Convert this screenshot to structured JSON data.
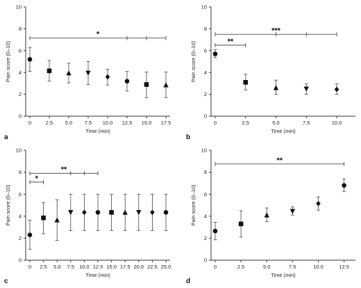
{
  "chart_data": [
    {
      "type": "scatter",
      "panel": "a",
      "xlabel": "Time (min)",
      "ylabel": "Pain score (0–10)",
      "ylim": [
        0,
        10
      ],
      "yticks": [
        "0",
        "2",
        "4",
        "6",
        "8",
        "10"
      ],
      "xticks": [
        "0",
        "2.5",
        "5.0",
        "7.5",
        "10.0",
        "12.5",
        "15.0",
        "17.5"
      ],
      "points": [
        {
          "x": 0,
          "y": 5.2,
          "lo": 4.1,
          "hi": 6.3,
          "marker": "circle"
        },
        {
          "x": 2.5,
          "y": 4.15,
          "lo": 3.2,
          "hi": 5.1,
          "marker": "square"
        },
        {
          "x": 5.0,
          "y": 3.95,
          "lo": 3.05,
          "hi": 4.85,
          "marker": "triangle-up"
        },
        {
          "x": 7.5,
          "y": 3.95,
          "lo": 2.9,
          "hi": 5.0,
          "marker": "triangle-down"
        },
        {
          "x": 10.0,
          "y": 3.6,
          "lo": 2.85,
          "hi": 4.3,
          "marker": "diamond"
        },
        {
          "x": 12.5,
          "y": 3.2,
          "lo": 2.3,
          "hi": 4.1,
          "marker": "circle"
        },
        {
          "x": 15.0,
          "y": 2.9,
          "lo": 1.7,
          "hi": 4.05,
          "marker": "square"
        },
        {
          "x": 17.5,
          "y": 2.85,
          "lo": 1.7,
          "hi": 4.05,
          "marker": "triangle-up"
        }
      ],
      "annotations": [
        {
          "label": "*",
          "y": 7.15,
          "x_start": 0,
          "x_end": 17.5,
          "ticks": [
            12.5,
            15.0,
            17.5
          ]
        }
      ]
    },
    {
      "type": "scatter",
      "panel": "b",
      "xlabel": "Time (min)",
      "ylabel": "Pain score (0–10)",
      "ylim": [
        0,
        10
      ],
      "yticks": [
        "0",
        "2",
        "4",
        "6",
        "8",
        "10"
      ],
      "xticks": [
        "0",
        "2.5",
        "5.0",
        "7.5",
        "10.0"
      ],
      "points": [
        {
          "x": 0,
          "y": 5.7,
          "lo": 5.35,
          "hi": 6.1,
          "marker": "circle"
        },
        {
          "x": 2.5,
          "y": 3.1,
          "lo": 2.4,
          "hi": 3.85,
          "marker": "square"
        },
        {
          "x": 5.0,
          "y": 2.6,
          "lo": 2.0,
          "hi": 3.3,
          "marker": "triangle-up"
        },
        {
          "x": 7.5,
          "y": 2.5,
          "lo": 2.0,
          "hi": 2.95,
          "marker": "triangle-down"
        },
        {
          "x": 10.0,
          "y": 2.45,
          "lo": 2.0,
          "hi": 2.95,
          "marker": "diamond"
        }
      ],
      "annotations": [
        {
          "label": "***",
          "y": 7.5,
          "x_start": 0,
          "x_end": 10.0,
          "ticks": [
            5.0,
            7.5,
            10.0
          ]
        },
        {
          "label": "**",
          "y": 6.5,
          "x_start": 0,
          "x_end": 2.5,
          "ticks": [
            2.5
          ]
        }
      ]
    },
    {
      "type": "scatter",
      "panel": "c",
      "xlabel": "Time (min)",
      "ylabel": "Pain score (0–10)",
      "ylim": [
        0,
        10
      ],
      "yticks": [
        "0",
        "2",
        "4",
        "6",
        "8",
        "10"
      ],
      "xticks": [
        "0",
        "2.5",
        "5.0",
        "7.5",
        "10.0",
        "12.5",
        "15.0",
        "17.5",
        "20.0",
        "22.5",
        "25.0"
      ],
      "points": [
        {
          "x": 0,
          "y": 2.3,
          "lo": 1.0,
          "hi": 3.65,
          "marker": "circle"
        },
        {
          "x": 2.5,
          "y": 3.85,
          "lo": 2.4,
          "hi": 5.25,
          "marker": "square"
        },
        {
          "x": 5.0,
          "y": 3.65,
          "lo": 1.8,
          "hi": 5.5,
          "marker": "triangle-up"
        },
        {
          "x": 7.5,
          "y": 4.35,
          "lo": 2.7,
          "hi": 6.0,
          "marker": "triangle-down"
        },
        {
          "x": 10.0,
          "y": 4.35,
          "lo": 2.7,
          "hi": 6.0,
          "marker": "diamond"
        },
        {
          "x": 12.5,
          "y": 4.35,
          "lo": 2.7,
          "hi": 6.0,
          "marker": "circle"
        },
        {
          "x": 15.0,
          "y": 4.35,
          "lo": 2.7,
          "hi": 6.0,
          "marker": "square"
        },
        {
          "x": 17.5,
          "y": 4.35,
          "lo": 2.7,
          "hi": 6.0,
          "marker": "triangle-up"
        },
        {
          "x": 20.0,
          "y": 4.35,
          "lo": 2.7,
          "hi": 6.0,
          "marker": "triangle-down"
        },
        {
          "x": 22.5,
          "y": 4.35,
          "lo": 2.7,
          "hi": 6.0,
          "marker": "diamond"
        },
        {
          "x": 25.0,
          "y": 4.35,
          "lo": 2.7,
          "hi": 6.0,
          "marker": "circle"
        }
      ],
      "annotations": [
        {
          "label": "**",
          "y": 7.9,
          "x_start": 0,
          "x_end": 12.5,
          "ticks": [
            7.5,
            10.0,
            12.5
          ]
        },
        {
          "label": "*",
          "y": 7.1,
          "x_start": 0,
          "x_end": 2.5,
          "ticks": [
            2.5
          ]
        }
      ]
    },
    {
      "type": "scatter",
      "panel": "d",
      "xlabel": "Time (min)",
      "ylabel": "Pain score (0–10)",
      "ylim": [
        0,
        10
      ],
      "yticks": [
        "0",
        "2",
        "4",
        "6",
        "8",
        "10"
      ],
      "xticks": [
        "0",
        "2.5",
        "5.0",
        "7.5",
        "10.0",
        "12.5"
      ],
      "points": [
        {
          "x": 0,
          "y": 2.65,
          "lo": 1.85,
          "hi": 3.45,
          "marker": "circle"
        },
        {
          "x": 2.5,
          "y": 3.3,
          "lo": 2.1,
          "hi": 4.5,
          "marker": "square"
        },
        {
          "x": 5.0,
          "y": 4.1,
          "lo": 3.5,
          "hi": 4.75,
          "marker": "triangle-up"
        },
        {
          "x": 7.5,
          "y": 4.45,
          "lo": 4.1,
          "hi": 4.85,
          "marker": "triangle-down"
        },
        {
          "x": 10.0,
          "y": 5.15,
          "lo": 4.55,
          "hi": 5.75,
          "marker": "diamond"
        },
        {
          "x": 12.5,
          "y": 6.8,
          "lo": 6.25,
          "hi": 7.4,
          "marker": "circle"
        }
      ],
      "annotations": [
        {
          "label": "**",
          "y": 8.75,
          "x_start": 0,
          "x_end": 12.5,
          "ticks": [
            12.5
          ]
        }
      ]
    }
  ]
}
